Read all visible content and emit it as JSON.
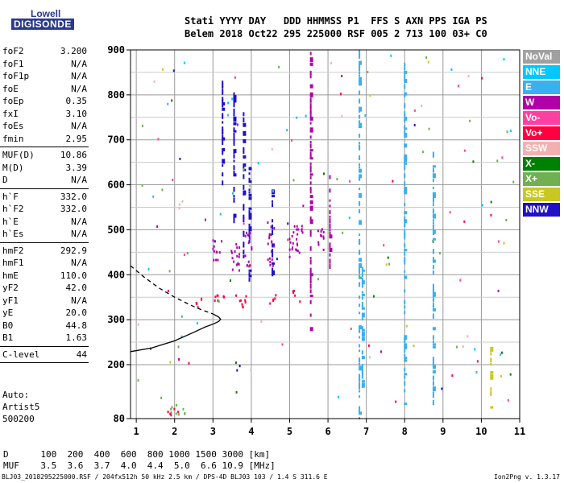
{
  "logo": {
    "line1": "Lowell",
    "line2": "DIGISONDE"
  },
  "header": {
    "row1": "Stati YYYY DAY   DDD HHMMSS P1  FFS S AXN PPS IGA PS",
    "row2": "Belem 2018 Oct22 295 225000 RSF 005 2 713 100 03+ C0"
  },
  "params": [
    {
      "name": "foF2",
      "value": "3.200"
    },
    {
      "name": "foF1",
      "value": "N/A"
    },
    {
      "name": "foF1p",
      "value": "N/A"
    },
    {
      "name": "foE",
      "value": "N/A"
    },
    {
      "name": "foEp",
      "value": "0.35"
    },
    {
      "name": "fxI",
      "value": "3.10"
    },
    {
      "name": "foEs",
      "value": "N/A"
    },
    {
      "name": "fmin",
      "value": "2.95"
    },
    {
      "sep": true
    },
    {
      "name": "MUF(D)",
      "value": "10.86"
    },
    {
      "name": "M(D)",
      "value": "3.39"
    },
    {
      "name": "D",
      "value": "N/A"
    },
    {
      "sep": true
    },
    {
      "name": "h`F",
      "value": "332.0"
    },
    {
      "name": "h`F2",
      "value": "332.0"
    },
    {
      "name": "h`E",
      "value": "N/A"
    },
    {
      "name": "h`Es",
      "value": "N/A"
    },
    {
      "sep": true
    },
    {
      "name": "hmF2",
      "value": "292.9"
    },
    {
      "name": "hmF1",
      "value": "N/A"
    },
    {
      "name": "hmE",
      "value": "110.0"
    },
    {
      "name": "yF2",
      "value": "42.0"
    },
    {
      "name": "yF1",
      "value": "N/A"
    },
    {
      "name": "yE",
      "value": "20.0"
    },
    {
      "name": "B0",
      "value": "44.8"
    },
    {
      "name": "B1",
      "value": "1.63"
    },
    {
      "sep": true
    },
    {
      "name": "C-level",
      "value": "44"
    },
    {
      "sep": true
    }
  ],
  "auto": {
    "line1": "Auto:",
    "line2": "Artist5",
    "line3": "500200"
  },
  "legend": [
    {
      "label": "NoVal",
      "color": "#a0a0a0"
    },
    {
      "label": "NNE",
      "color": "#00c8ff"
    },
    {
      "label": "E",
      "color": "#3ab0ee"
    },
    {
      "label": "W",
      "color": "#b000a8"
    },
    {
      "label": "Vo-",
      "color": "#ff40a0"
    },
    {
      "label": "Vo+",
      "color": "#ff0040"
    },
    {
      "label": "SSW",
      "color": "#f4b0b0"
    },
    {
      "label": "X-",
      "color": "#008000"
    },
    {
      "label": "X+",
      "color": "#70b050"
    },
    {
      "label": "SSE",
      "color": "#c8c820"
    },
    {
      "label": "NNW",
      "color": "#2010c8"
    }
  ],
  "muf_table": {
    "d_label": "D",
    "muf_label": "MUF",
    "d_values": [
      "100",
      "200",
      "400",
      "600",
      "800",
      "1000",
      "1500",
      "3000"
    ],
    "d_unit": "[km]",
    "muf_values": [
      "3.5",
      "3.6",
      "3.7",
      "4.0",
      "4.4",
      "5.0",
      "6.6",
      "10.9"
    ],
    "muf_unit": "[MHz]"
  },
  "footer": {
    "left": "BLJ03_2018295225000.RSF / 204fx512h 50 kHz 2.5 km / DPS-4D BLJ03 103 / 1.4 S 311.6 E",
    "right": "Ion2Png v. 1.3.17"
  },
  "chart_data": {
    "type": "scatter",
    "x_ticks": [
      "1",
      "2",
      "3",
      "4",
      "5",
      "6",
      "7",
      "8",
      "9",
      "10",
      "11"
    ],
    "y_ticks": [
      "80",
      "200",
      "300",
      "400",
      "500",
      "600",
      "700",
      "800",
      "900"
    ],
    "xlim": [
      0.85,
      11
    ],
    "ylim": [
      80,
      900
    ],
    "grid": true,
    "profile_solid": [
      [
        0.85,
        229
      ],
      [
        1.4,
        237
      ],
      [
        2.0,
        253
      ],
      [
        2.5,
        272
      ],
      [
        2.8,
        284
      ],
      [
        3.0,
        290
      ],
      [
        3.15,
        296
      ],
      [
        3.2,
        301
      ],
      [
        3.15,
        306
      ],
      [
        3.0,
        313
      ]
    ],
    "profile_dashed": [
      [
        0.85,
        420
      ],
      [
        1.2,
        395
      ],
      [
        1.6,
        370
      ],
      [
        2.0,
        350
      ],
      [
        2.4,
        333
      ],
      [
        2.7,
        322
      ],
      [
        3.0,
        313
      ]
    ],
    "traces": [
      {
        "name": "NNW",
        "color": "#2010c8",
        "x": 3.25,
        "y0": 600,
        "y1": 830
      },
      {
        "name": "NNW",
        "color": "#2010c8",
        "x": 3.55,
        "y0": 520,
        "y1": 820
      },
      {
        "name": "NNW",
        "color": "#2010c8",
        "x": 3.8,
        "y0": 440,
        "y1": 760
      },
      {
        "name": "NNW",
        "color": "#2010c8",
        "x": 3.95,
        "y0": 390,
        "y1": 640
      },
      {
        "name": "NNW",
        "color": "#2010c8",
        "x": 4.55,
        "y0": 400,
        "y1": 590
      },
      {
        "name": "E",
        "color": "#3ab0ee",
        "x": 6.82,
        "y0": 80,
        "y1": 900
      },
      {
        "name": "E",
        "color": "#3ab0ee",
        "x": 6.9,
        "y0": 150,
        "y1": 420
      },
      {
        "name": "E",
        "color": "#3ab0ee",
        "x": 8.0,
        "y0": 100,
        "y1": 880
      },
      {
        "name": "E",
        "color": "#3ab0ee",
        "x": 8.75,
        "y0": 100,
        "y1": 700
      },
      {
        "name": "W",
        "color": "#b000a8",
        "x": 6.05,
        "y0": 420,
        "y1": 620
      },
      {
        "name": "W",
        "color": "#b000a8",
        "x": 5.55,
        "y0": 280,
        "y1": 900
      },
      {
        "name": "SSE",
        "color": "#c8c820",
        "x": 10.25,
        "y0": 80,
        "y1": 240
      }
    ],
    "clusters": [
      {
        "name": "W",
        "color": "#b000a8",
        "x": 3.1,
        "y": 460,
        "w": 0.25,
        "h": 50
      },
      {
        "name": "W",
        "color": "#b000a8",
        "x": 3.55,
        "y": 440,
        "w": 0.25,
        "h": 70
      },
      {
        "name": "W",
        "color": "#b000a8",
        "x": 3.9,
        "y": 460,
        "w": 0.2,
        "h": 80
      },
      {
        "name": "W",
        "color": "#b000a8",
        "x": 4.5,
        "y": 470,
        "w": 0.2,
        "h": 100
      },
      {
        "name": "W",
        "color": "#b000a8",
        "x": 5.15,
        "y": 475,
        "w": 0.35,
        "h": 80
      },
      {
        "name": "W",
        "color": "#b000a8",
        "x": 5.8,
        "y": 485,
        "w": 0.2,
        "h": 60
      },
      {
        "name": "Vo+",
        "color": "#ff0040",
        "x": 2.6,
        "y": 340,
        "w": 0.2,
        "h": 25
      },
      {
        "name": "Vo+",
        "color": "#ff0040",
        "x": 3.15,
        "y": 345,
        "w": 0.25,
        "h": 30
      },
      {
        "name": "Vo+",
        "color": "#ff0040",
        "x": 3.75,
        "y": 345,
        "w": 0.35,
        "h": 30
      },
      {
        "name": "Vo+",
        "color": "#ff0040",
        "x": 4.55,
        "y": 350,
        "w": 0.2,
        "h": 30
      },
      {
        "name": "X+",
        "color": "#70b050",
        "x": 2.05,
        "y": 100,
        "w": 0.4,
        "h": 25
      },
      {
        "name": "Vo+",
        "color": "#ff0040",
        "x": 1.95,
        "y": 95,
        "w": 0.3,
        "h": 20
      },
      {
        "name": "SSW",
        "color": "#f4b0b0",
        "x": 2.15,
        "y": 560,
        "w": 0.1,
        "h": 30
      },
      {
        "name": "Vo+",
        "color": "#ff0040",
        "x": 5.15,
        "y": 355,
        "w": 0.2,
        "h": 30
      }
    ]
  }
}
